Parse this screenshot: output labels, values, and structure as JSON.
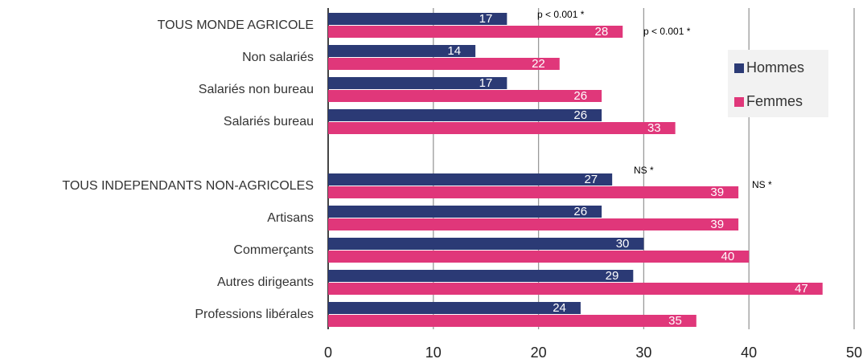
{
  "chart_data": {
    "type": "bar",
    "orientation": "horizontal",
    "categories": [
      "TOUS MONDE AGRICOLE",
      "Non salariés",
      "Salariés non bureau",
      "Salariés bureau",
      null,
      "TOUS INDEPENDANTS NON-AGRICOLES",
      "Artisans",
      "Commerçants",
      "Autres dirigeants",
      "Professions libérales"
    ],
    "series": [
      {
        "name": "Hommes",
        "color": "#2b3a75",
        "values": [
          17,
          14,
          17,
          26,
          null,
          27,
          26,
          30,
          29,
          24
        ]
      },
      {
        "name": "Femmes",
        "color": "#e0377a",
        "values": [
          28,
          22,
          26,
          33,
          null,
          39,
          39,
          40,
          47,
          35
        ]
      }
    ],
    "annotations": [
      "p < 0.001 *",
      "p < 0.001 *",
      "NS *",
      "NS *"
    ],
    "xlim": [
      0,
      50
    ],
    "xticks": [
      0,
      10,
      20,
      30,
      40,
      50
    ],
    "grid": true,
    "legend": "upper right"
  }
}
